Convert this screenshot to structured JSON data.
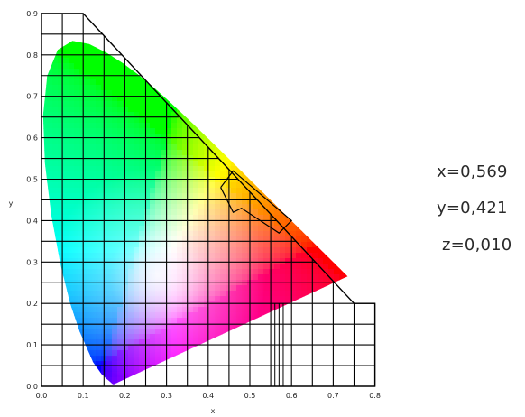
{
  "diagram": {
    "x_axis_label": "x",
    "y_axis_label": "y",
    "x_ticks": [
      "0.0",
      "0.1",
      "0.2",
      "0.3",
      "0.4",
      "0.5",
      "0.6",
      "0.7",
      "0.8"
    ],
    "y_ticks": [
      "0.0",
      "0.1",
      "0.2",
      "0.3",
      "0.4",
      "0.5",
      "0.6",
      "0.7",
      "0.8",
      "0.9"
    ],
    "x_range": [
      0.0,
      0.8
    ],
    "y_range": [
      0.0,
      0.9
    ],
    "grid": true
  },
  "coordinates": {
    "x": "x=0,569",
    "y": "y=0,421",
    "z": "z=0,010"
  }
}
